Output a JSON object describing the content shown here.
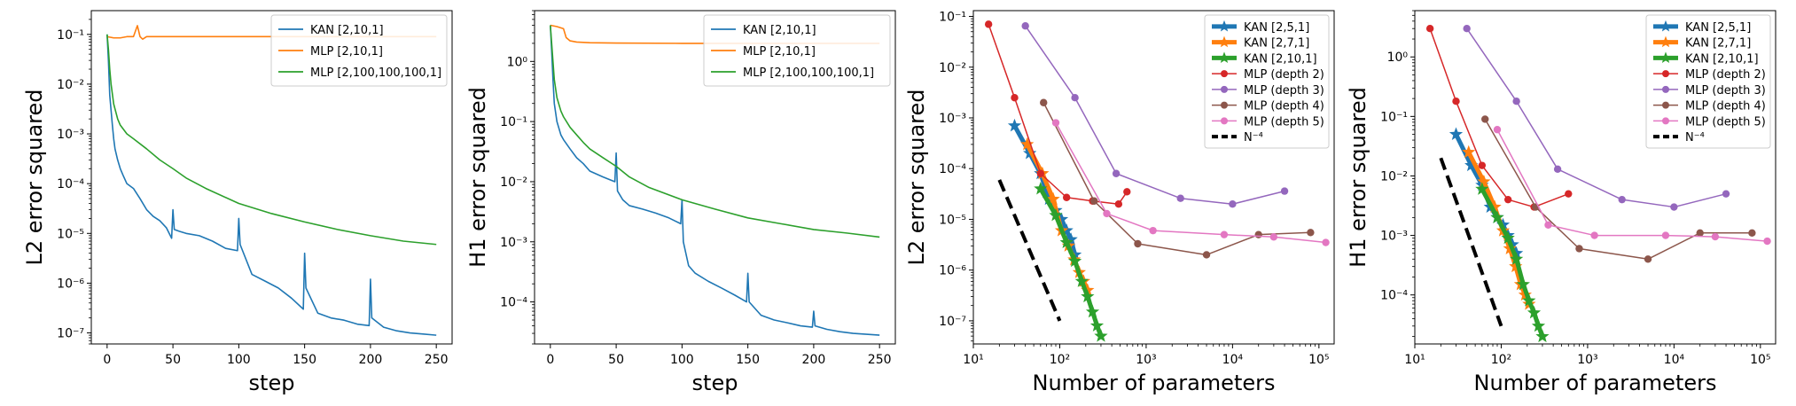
{
  "colors": {
    "blue": "#1f77b4",
    "orange": "#ff7f0e",
    "green": "#2ca02c",
    "red": "#d62728",
    "purple": "#9467bd",
    "brown": "#8c564b",
    "pink": "#e377c2",
    "black": "#000000"
  },
  "chart_data": [
    {
      "type": "line",
      "xlabel": "step",
      "ylabel": "L2 error squared",
      "xscale": "linear",
      "yscale": "log",
      "xlim": [
        -12,
        262
      ],
      "ylim": [
        6e-08,
        0.3
      ],
      "xticks": [
        0,
        50,
        100,
        150,
        200,
        250
      ],
      "xtick_labels": [
        "0",
        "50",
        "100",
        "150",
        "200",
        "250"
      ],
      "yticks": [
        1e-07,
        1e-06,
        1e-05,
        0.0001,
        0.001,
        0.01,
        0.1
      ],
      "ytick_labels": [
        "10⁻⁷",
        "10⁻⁶",
        "10⁻⁵",
        "10⁻⁴",
        "10⁻³",
        "10⁻²",
        "10⁻¹"
      ],
      "grid": false,
      "legend_position": "top-right",
      "series": [
        {
          "name": "KAN [2,10,1]",
          "color": "#1f77b4",
          "x": [
            0,
            1,
            2,
            3,
            4,
            5,
            6,
            8,
            10,
            12,
            15,
            20,
            25,
            30,
            35,
            40,
            45,
            49,
            50,
            51,
            55,
            60,
            70,
            80,
            90,
            99,
            100,
            101,
            110,
            120,
            130,
            140,
            149,
            150,
            151,
            160,
            170,
            180,
            190,
            199,
            200,
            201,
            210,
            220,
            230,
            240,
            250
          ],
          "y": [
            0.1,
            0.03,
            0.006,
            0.003,
            0.0015,
            0.0008,
            0.0005,
            0.0003,
            0.0002,
            0.00015,
            0.0001,
            8e-05,
            5e-05,
            3e-05,
            2.2e-05,
            1.8e-05,
            1.3e-05,
            8e-06,
            3e-05,
            1.2e-05,
            1.1e-05,
            1e-05,
            9e-06,
            7e-06,
            5e-06,
            4.5e-06,
            2e-05,
            6e-06,
            1.5e-06,
            1.1e-06,
            8e-07,
            5e-07,
            3e-07,
            4e-06,
            8e-07,
            2.5e-07,
            2e-07,
            1.8e-07,
            1.5e-07,
            1.4e-07,
            1.2e-06,
            2e-07,
            1.3e-07,
            1.1e-07,
            1e-07,
            9.5e-08,
            9e-08
          ]
        },
        {
          "name": "MLP [2,10,1]",
          "color": "#ff7f0e",
          "x": [
            0,
            5,
            10,
            15,
            20,
            23,
            25,
            27,
            30,
            35,
            40,
            60,
            100,
            150,
            200,
            250
          ],
          "y": [
            0.09,
            0.085,
            0.085,
            0.09,
            0.09,
            0.15,
            0.09,
            0.08,
            0.09,
            0.09,
            0.09,
            0.09,
            0.09,
            0.09,
            0.09,
            0.09
          ]
        },
        {
          "name": "MLP [2,100,100,100,1]",
          "color": "#2ca02c",
          "x": [
            0,
            1,
            2,
            3,
            5,
            8,
            10,
            15,
            20,
            30,
            40,
            50,
            60,
            75,
            100,
            125,
            150,
            175,
            200,
            225,
            250
          ],
          "y": [
            0.1,
            0.05,
            0.02,
            0.01,
            0.004,
            0.002,
            0.0015,
            0.001,
            0.0008,
            0.0005,
            0.0003,
            0.0002,
            0.00013,
            8e-05,
            4e-05,
            2.5e-05,
            1.7e-05,
            1.2e-05,
            9e-06,
            7e-06,
            6e-06
          ]
        }
      ]
    },
    {
      "type": "line",
      "xlabel": "step",
      "ylabel": "H1 error squared",
      "xscale": "linear",
      "yscale": "log",
      "xlim": [
        -12,
        262
      ],
      "ylim": [
        2e-05,
        7
      ],
      "xticks": [
        0,
        50,
        100,
        150,
        200,
        250
      ],
      "xtick_labels": [
        "0",
        "50",
        "100",
        "150",
        "200",
        "250"
      ],
      "yticks": [
        0.0001,
        0.001,
        0.01,
        0.1,
        1
      ],
      "ytick_labels": [
        "10⁻⁴",
        "10⁻³",
        "10⁻²",
        "10⁻¹",
        "10⁰"
      ],
      "grid": false,
      "legend_position": "top-right",
      "series": [
        {
          "name": "KAN [2,10,1]",
          "color": "#1f77b4",
          "x": [
            0,
            1,
            2,
            3,
            5,
            8,
            10,
            15,
            20,
            25,
            30,
            40,
            49,
            50,
            51,
            55,
            60,
            70,
            80,
            90,
            99,
            100,
            101,
            105,
            110,
            120,
            130,
            140,
            149,
            150,
            151,
            160,
            170,
            180,
            190,
            199,
            200,
            201,
            210,
            220,
            230,
            240,
            250
          ],
          "y": [
            4,
            1.5,
            0.5,
            0.2,
            0.1,
            0.06,
            0.05,
            0.035,
            0.025,
            0.02,
            0.015,
            0.012,
            0.01,
            0.03,
            0.007,
            0.005,
            0.004,
            0.0035,
            0.003,
            0.0025,
            0.002,
            0.005,
            0.001,
            0.0004,
            0.0003,
            0.00022,
            0.00017,
            0.00013,
            0.0001,
            0.0003,
            0.0001,
            6e-05,
            5e-05,
            4.5e-05,
            4e-05,
            3.8e-05,
            7e-05,
            4e-05,
            3.5e-05,
            3.2e-05,
            3e-05,
            2.9e-05,
            2.8e-05
          ]
        },
        {
          "name": "MLP [2,10,1]",
          "color": "#ff7f0e",
          "x": [
            0,
            5,
            10,
            12,
            15,
            20,
            30,
            50,
            100,
            150,
            200,
            250
          ],
          "y": [
            4,
            3.8,
            3.5,
            2.5,
            2.2,
            2.1,
            2.05,
            2.02,
            2.0,
            2.0,
            2.0,
            2.0
          ]
        },
        {
          "name": "MLP [2,100,100,100,1]",
          "color": "#2ca02c",
          "x": [
            0,
            1,
            2,
            3,
            5,
            8,
            10,
            15,
            20,
            25,
            30,
            40,
            50,
            60,
            75,
            100,
            125,
            150,
            175,
            200,
            225,
            250
          ],
          "y": [
            4,
            2,
            1,
            0.5,
            0.25,
            0.15,
            0.12,
            0.08,
            0.06,
            0.045,
            0.035,
            0.025,
            0.018,
            0.012,
            0.008,
            0.005,
            0.0035,
            0.0025,
            0.002,
            0.0016,
            0.0014,
            0.0012
          ]
        }
      ]
    },
    {
      "type": "line",
      "xlabel": "Number of parameters",
      "ylabel": "L2 error squared",
      "xscale": "log",
      "yscale": "log",
      "xlim": [
        10,
        150000
      ],
      "ylim": [
        3.5e-08,
        0.13
      ],
      "xticks": [
        10,
        100,
        1000,
        10000,
        100000
      ],
      "xtick_labels": [
        "10¹",
        "10²",
        "10³",
        "10⁴",
        "10⁵"
      ],
      "yticks": [
        1e-07,
        1e-06,
        1e-05,
        0.0001,
        0.001,
        0.01,
        0.1
      ],
      "ytick_labels": [
        "10⁻⁷",
        "10⁻⁶",
        "10⁻⁵",
        "10⁻⁴",
        "10⁻³",
        "10⁻²",
        "10⁻¹"
      ],
      "grid": false,
      "legend_position": "top-right",
      "series": [
        {
          "name": "KAN [2,5,1]",
          "color": "#1f77b4",
          "marker": "star",
          "linewidth": 5,
          "x": [
            30,
            45,
            60,
            75,
            90,
            105,
            120,
            135,
            150
          ],
          "y": [
            0.0007,
            0.0002,
            8e-05,
            2.5e-05,
            1.5e-05,
            1e-05,
            6e-06,
            4e-06,
            2e-06
          ]
        },
        {
          "name": "KAN [2,7,1]",
          "color": "#ff7f0e",
          "marker": "star",
          "linewidth": 5,
          "x": [
            42,
            63,
            84,
            105,
            126,
            147,
            168,
            189,
            210
          ],
          "y": [
            0.0003,
            8e-05,
            2.5e-05,
            6e-06,
            3e-06,
            1.6e-06,
            9e-07,
            6e-07,
            4e-07
          ]
        },
        {
          "name": "KAN [2,10,1]",
          "color": "#2ca02c",
          "marker": "star",
          "linewidth": 5,
          "x": [
            60,
            90,
            120,
            150,
            180,
            210,
            240,
            270,
            300
          ],
          "y": [
            4e-05,
            1.2e-05,
            3.5e-06,
            1.5e-06,
            6e-07,
            3e-07,
            1.5e-07,
            8e-08,
            5e-08
          ]
        },
        {
          "name": "MLP (depth 2)",
          "color": "#d62728",
          "marker": "circle",
          "linewidth": 1.5,
          "x": [
            15,
            30,
            60,
            120,
            240,
            480,
            600
          ],
          "y": [
            0.07,
            0.0025,
            8e-05,
            2.7e-05,
            2.3e-05,
            2e-05,
            3.5e-05
          ]
        },
        {
          "name": "MLP (depth 3)",
          "color": "#9467bd",
          "marker": "circle",
          "linewidth": 1.5,
          "x": [
            40,
            150,
            450,
            2500,
            10000,
            40000
          ],
          "y": [
            0.065,
            0.0025,
            8e-05,
            2.6e-05,
            2e-05,
            3.6e-05
          ]
        },
        {
          "name": "MLP (depth 4)",
          "color": "#8c564b",
          "marker": "circle",
          "linewidth": 1.5,
          "x": [
            65,
            250,
            800,
            5000,
            20000,
            80000
          ],
          "y": [
            0.002,
            2.3e-05,
            3.3e-06,
            2e-06,
            5e-06,
            5.5e-06
          ]
        },
        {
          "name": "MLP (depth 5)",
          "color": "#e377c2",
          "marker": "circle",
          "linewidth": 1.5,
          "x": [
            90,
            350,
            1200,
            8000,
            30000,
            120000
          ],
          "y": [
            0.0008,
            1.3e-05,
            6e-06,
            5e-06,
            4.5e-06,
            3.5e-06
          ]
        },
        {
          "name": "N⁻⁴",
          "color": "#000000",
          "marker": "none",
          "linewidth": 4,
          "dash": "dashed",
          "x": [
            20,
            100
          ],
          "y": [
            6e-05,
            1e-07
          ]
        }
      ]
    },
    {
      "type": "line",
      "xlabel": "Number of parameters",
      "ylabel": "H1 error squared",
      "xscale": "log",
      "yscale": "log",
      "xlim": [
        10,
        150000
      ],
      "ylim": [
        1.5e-05,
        6
      ],
      "xticks": [
        10,
        100,
        1000,
        10000,
        100000
      ],
      "xtick_labels": [
        "10¹",
        "10²",
        "10³",
        "10⁴",
        "10⁵"
      ],
      "yticks": [
        0.0001,
        0.001,
        0.01,
        0.1,
        1
      ],
      "ytick_labels": [
        "10⁻⁴",
        "10⁻³",
        "10⁻²",
        "10⁻¹",
        "10⁰"
      ],
      "grid": false,
      "legend_position": "top-right",
      "series": [
        {
          "name": "KAN [2,5,1]",
          "color": "#1f77b4",
          "marker": "star",
          "linewidth": 5,
          "x": [
            30,
            45,
            60,
            75,
            90,
            105,
            120,
            135,
            150
          ],
          "y": [
            0.05,
            0.015,
            0.007,
            0.003,
            0.002,
            0.0015,
            0.001,
            0.0007,
            0.0005
          ]
        },
        {
          "name": "KAN [2,7,1]",
          "color": "#ff7f0e",
          "marker": "star",
          "linewidth": 5,
          "x": [
            42,
            63,
            84,
            105,
            126,
            147,
            168,
            189,
            210
          ],
          "y": [
            0.025,
            0.008,
            0.003,
            0.0012,
            0.0006,
            0.0003,
            0.00015,
            0.0001,
            7e-05
          ]
        },
        {
          "name": "KAN [2,10,1]",
          "color": "#2ca02c",
          "marker": "star",
          "linewidth": 5,
          "x": [
            60,
            90,
            120,
            150,
            180,
            210,
            240,
            270,
            300
          ],
          "y": [
            0.006,
            0.002,
            0.0009,
            0.0004,
            0.00015,
            8e-05,
            5e-05,
            3e-05,
            2e-05
          ]
        },
        {
          "name": "MLP (depth 2)",
          "color": "#d62728",
          "marker": "circle",
          "linewidth": 1.5,
          "x": [
            15,
            30,
            60,
            120,
            240,
            600
          ],
          "y": [
            3,
            0.18,
            0.015,
            0.004,
            0.003,
            0.005
          ]
        },
        {
          "name": "MLP (depth 3)",
          "color": "#9467bd",
          "marker": "circle",
          "linewidth": 1.5,
          "x": [
            40,
            150,
            450,
            2500,
            10000,
            40000
          ],
          "y": [
            3,
            0.18,
            0.013,
            0.004,
            0.003,
            0.005
          ]
        },
        {
          "name": "MLP (depth 4)",
          "color": "#8c564b",
          "marker": "circle",
          "linewidth": 1.5,
          "x": [
            65,
            250,
            800,
            5000,
            20000,
            80000
          ],
          "y": [
            0.09,
            0.003,
            0.0006,
            0.0004,
            0.0011,
            0.0011
          ]
        },
        {
          "name": "MLP (depth 5)",
          "color": "#e377c2",
          "marker": "circle",
          "linewidth": 1.5,
          "x": [
            90,
            350,
            1200,
            8000,
            30000,
            120000
          ],
          "y": [
            0.06,
            0.0015,
            0.001,
            0.001,
            0.00095,
            0.0008
          ]
        },
        {
          "name": "N⁻⁴",
          "color": "#000000",
          "marker": "none",
          "linewidth": 4,
          "dash": "dashed",
          "x": [
            20,
            100
          ],
          "y": [
            0.02,
            3e-05
          ]
        }
      ]
    }
  ]
}
